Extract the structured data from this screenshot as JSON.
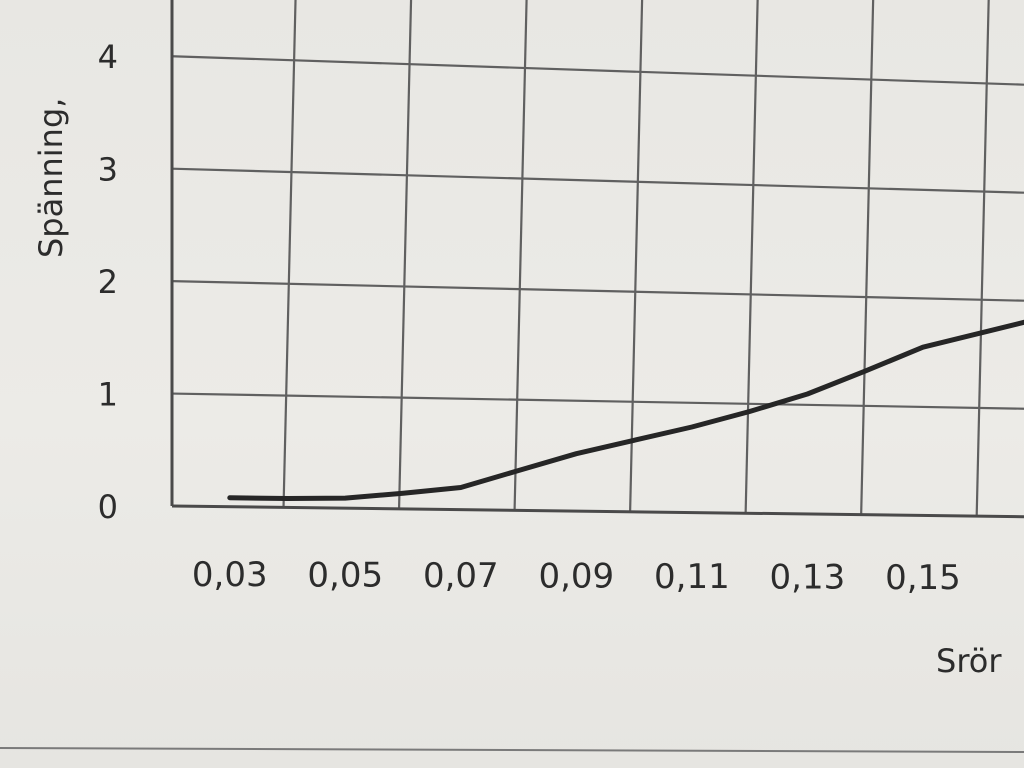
{
  "chart_data": {
    "type": "line",
    "title": "",
    "xlabel": "Srör",
    "ylabel": "Spänning,",
    "x_ticks": [
      "0,03",
      "0,05",
      "0,07",
      "0,09",
      "0,11",
      "0,13",
      "0,15"
    ],
    "y_ticks": [
      "0",
      "1",
      "2",
      "3",
      "4"
    ],
    "xlim": [
      0.02,
      0.1675
    ],
    "ylim": [
      0,
      4.5
    ],
    "grid": true,
    "series": [
      {
        "x": [
          0.03,
          0.04,
          0.05,
          0.06,
          0.07,
          0.08,
          0.09,
          0.1,
          0.11,
          0.12,
          0.13,
          0.14,
          0.15,
          0.1675
        ],
        "y": [
          0.08,
          0.08,
          0.09,
          0.14,
          0.2,
          0.36,
          0.52,
          0.65,
          0.78,
          0.93,
          1.1,
          1.32,
          1.55,
          1.8
        ]
      }
    ]
  }
}
